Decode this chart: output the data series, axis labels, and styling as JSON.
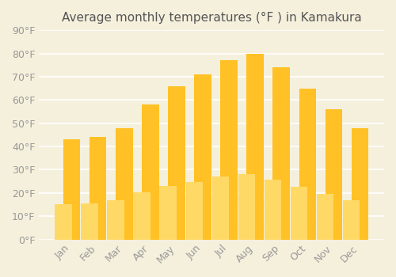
{
  "title": "Average monthly temperatures (°F ) in Kamakura",
  "months": [
    "Jan",
    "Feb",
    "Mar",
    "Apr",
    "May",
    "Jun",
    "Jul",
    "Aug",
    "Sep",
    "Oct",
    "Nov",
    "Dec"
  ],
  "values": [
    43,
    44,
    48,
    58,
    66,
    71,
    77,
    80,
    74,
    65,
    56,
    48
  ],
  "bar_color_top": "#FFC125",
  "bar_color_bottom": "#FFD966",
  "background_color": "#F5F0DC",
  "grid_color": "#FFFFFF",
  "text_color": "#999999",
  "title_color": "#555555",
  "ylim": [
    0,
    90
  ],
  "yticks": [
    0,
    10,
    20,
    30,
    40,
    50,
    60,
    70,
    80,
    90
  ],
  "ylabel_suffix": "°F",
  "title_fontsize": 11,
  "tick_fontsize": 9,
  "figsize": [
    5.0,
    3.5
  ],
  "dpi": 100
}
